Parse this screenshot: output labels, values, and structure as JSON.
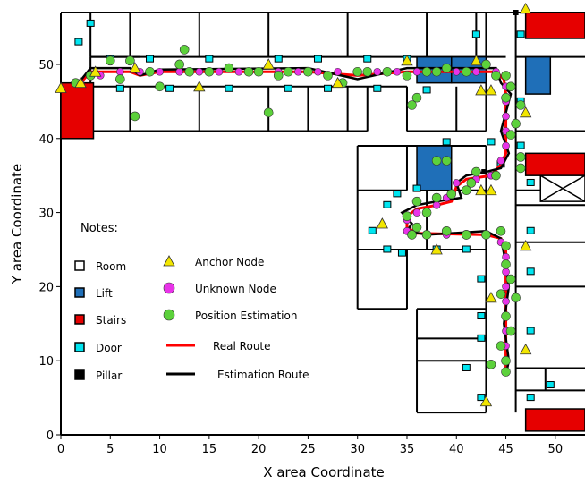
{
  "chart_data": {
    "type": "scatter",
    "title": "",
    "xlabel": "X area Coordinate",
    "ylabel": "Y area Coordinate",
    "xlim": [
      0,
      53
    ],
    "ylim": [
      0,
      57
    ],
    "xticks": [
      0,
      5,
      10,
      15,
      20,
      25,
      30,
      35,
      40,
      45,
      50
    ],
    "yticks": [
      0,
      10,
      20,
      30,
      40,
      50
    ],
    "notes_title": "Notes:",
    "notes": [
      {
        "label": "Room",
        "color": "#ffffff"
      },
      {
        "label": "Lift",
        "color": "#1f6fb8"
      },
      {
        "label": "Stairs",
        "color": "#e60000"
      },
      {
        "label": "Door",
        "color": "#00e5f0"
      },
      {
        "label": "Pillar",
        "color": "#000000"
      }
    ],
    "legend": [
      {
        "label": "Anchor Node",
        "marker": "triangle",
        "color": "#f2e600"
      },
      {
        "label": "Unknown Node",
        "marker": "circle",
        "color": "#e833e8"
      },
      {
        "label": "Position Estimation",
        "marker": "circle",
        "color": "#5cd13b"
      },
      {
        "label": "Real Route",
        "marker": "line",
        "color": "#ff0000"
      },
      {
        "label": "Estimation Route",
        "marker": "line",
        "color": "#000000"
      }
    ],
    "series": [
      {
        "name": "Anchor Node",
        "points": [
          [
            0,
            46.8
          ],
          [
            2,
            47.5
          ],
          [
            3.5,
            49
          ],
          [
            7.5,
            49.5
          ],
          [
            14,
            47
          ],
          [
            21,
            50
          ],
          [
            28,
            47.5
          ],
          [
            35,
            50.5
          ],
          [
            42,
            50.5
          ],
          [
            47,
            57.5
          ],
          [
            42.5,
            46.5
          ],
          [
            43.5,
            46.5
          ],
          [
            47,
            43.5
          ],
          [
            42.5,
            33
          ],
          [
            43.5,
            33
          ],
          [
            32.5,
            28.5
          ],
          [
            38,
            25
          ],
          [
            47,
            25.5
          ],
          [
            43.5,
            18.5
          ],
          [
            47,
            11.5
          ],
          [
            43,
            4.5
          ]
        ]
      },
      {
        "name": "Unknown Node",
        "points": [
          [
            2,
            47.5
          ],
          [
            4,
            48.5
          ],
          [
            6,
            49
          ],
          [
            8,
            49
          ],
          [
            10,
            49
          ],
          [
            12,
            49
          ],
          [
            14,
            49
          ],
          [
            16,
            49
          ],
          [
            18,
            49
          ],
          [
            20,
            49
          ],
          [
            22,
            49
          ],
          [
            24,
            49
          ],
          [
            26,
            49
          ],
          [
            28,
            49
          ],
          [
            30,
            49
          ],
          [
            32,
            49
          ],
          [
            34,
            49
          ],
          [
            36,
            49
          ],
          [
            38,
            49
          ],
          [
            40,
            49
          ],
          [
            42,
            49
          ],
          [
            44,
            49
          ],
          [
            45,
            47
          ],
          [
            45,
            45
          ],
          [
            45,
            43
          ],
          [
            45,
            41
          ],
          [
            45,
            39
          ],
          [
            44.5,
            37
          ],
          [
            43.5,
            35
          ],
          [
            42,
            34.5
          ],
          [
            40,
            34
          ],
          [
            39,
            32
          ],
          [
            38,
            31
          ],
          [
            36,
            30
          ],
          [
            35,
            29
          ],
          [
            35,
            27.5
          ],
          [
            37,
            27
          ],
          [
            39,
            27
          ],
          [
            41,
            27
          ],
          [
            43,
            27
          ],
          [
            44.5,
            26
          ],
          [
            45,
            24
          ],
          [
            45,
            22
          ],
          [
            45,
            20
          ],
          [
            45,
            18
          ],
          [
            45,
            16
          ],
          [
            45,
            14
          ],
          [
            45,
            12
          ],
          [
            45,
            10
          ]
        ]
      },
      {
        "name": "Position Estimation",
        "points": [
          [
            1.5,
            47.5
          ],
          [
            3,
            48.5
          ],
          [
            5,
            50.5
          ],
          [
            6,
            48
          ],
          [
            7.5,
            43
          ],
          [
            7,
            50.5
          ],
          [
            9,
            49
          ],
          [
            10,
            47
          ],
          [
            12,
            50
          ],
          [
            12.5,
            52
          ],
          [
            13,
            49
          ],
          [
            15,
            49
          ],
          [
            17,
            49.5
          ],
          [
            19,
            49
          ],
          [
            20,
            49
          ],
          [
            21,
            43.5
          ],
          [
            22,
            48.5
          ],
          [
            23,
            49
          ],
          [
            25,
            49
          ],
          [
            27,
            48.5
          ],
          [
            28.5,
            47.5
          ],
          [
            30,
            49
          ],
          [
            31,
            49
          ],
          [
            33,
            49
          ],
          [
            35,
            48.5
          ],
          [
            36,
            45.5
          ],
          [
            35.5,
            44.5
          ],
          [
            37,
            49
          ],
          [
            38,
            49
          ],
          [
            39,
            49.5
          ],
          [
            41,
            49
          ],
          [
            43,
            50
          ],
          [
            44,
            48.5
          ],
          [
            45,
            48.5
          ],
          [
            45.5,
            47
          ],
          [
            45,
            45.5
          ],
          [
            46,
            42
          ],
          [
            45.5,
            40.5
          ],
          [
            46.5,
            37.5
          ],
          [
            44,
            35
          ],
          [
            46.5,
            36
          ],
          [
            42,
            35.5
          ],
          [
            41,
            33
          ],
          [
            39,
            37
          ],
          [
            38,
            37
          ],
          [
            39.5,
            32.5
          ],
          [
            38,
            32
          ],
          [
            36,
            31.5
          ],
          [
            37,
            30
          ],
          [
            35,
            29.5
          ],
          [
            36,
            28
          ],
          [
            35.5,
            27
          ],
          [
            37,
            27
          ],
          [
            39,
            27.5
          ],
          [
            41,
            27
          ],
          [
            43,
            27
          ],
          [
            44.5,
            27.5
          ],
          [
            45,
            25.5
          ],
          [
            45,
            23
          ],
          [
            45.5,
            21
          ],
          [
            44.5,
            19
          ],
          [
            46,
            18.5
          ],
          [
            45,
            16
          ],
          [
            45.5,
            14
          ],
          [
            44.5,
            12
          ],
          [
            45,
            10
          ],
          [
            45,
            8.5
          ],
          [
            43.5,
            9.5
          ],
          [
            41,
            27
          ],
          [
            46.5,
            44.5
          ],
          [
            41.5,
            34
          ]
        ]
      },
      {
        "name": "Real Route",
        "points": [
          [
            2,
            47.5
          ],
          [
            3,
            49
          ],
          [
            7,
            49
          ],
          [
            8,
            48.5
          ],
          [
            10,
            49
          ],
          [
            25,
            49
          ],
          [
            30,
            48.5
          ],
          [
            35,
            49
          ],
          [
            44,
            49
          ],
          [
            44.8,
            48
          ],
          [
            45,
            46
          ],
          [
            45,
            38
          ],
          [
            44.5,
            36.5
          ],
          [
            43.5,
            35
          ],
          [
            41,
            34.5
          ],
          [
            40,
            33.5
          ],
          [
            39.5,
            31.5
          ],
          [
            38,
            31
          ],
          [
            36,
            30.5
          ],
          [
            35,
            29.5
          ],
          [
            35,
            28
          ],
          [
            36,
            27.2
          ],
          [
            43,
            27
          ],
          [
            44.5,
            26.5
          ],
          [
            45,
            25
          ],
          [
            45,
            9
          ]
        ]
      },
      {
        "name": "Estimation Route",
        "points": [
          [
            1.5,
            47
          ],
          [
            3,
            49.5
          ],
          [
            7,
            49.5
          ],
          [
            8,
            48.5
          ],
          [
            10,
            49.3
          ],
          [
            25,
            49.5
          ],
          [
            30,
            48
          ],
          [
            35,
            49.5
          ],
          [
            44,
            49.5
          ],
          [
            44.5,
            47.5
          ],
          [
            45.5,
            46
          ],
          [
            44.5,
            41
          ],
          [
            45.3,
            38
          ],
          [
            44.5,
            36
          ],
          [
            43,
            35.5
          ],
          [
            41,
            35
          ],
          [
            40,
            34
          ],
          [
            40.5,
            32
          ],
          [
            38,
            31.5
          ],
          [
            36,
            31
          ],
          [
            34.5,
            30
          ],
          [
            35.5,
            28.5
          ],
          [
            35,
            27.5
          ],
          [
            37,
            27
          ],
          [
            43,
            27.5
          ],
          [
            44.5,
            26.5
          ],
          [
            44.8,
            24.5
          ],
          [
            45.3,
            20
          ],
          [
            44.8,
            15
          ],
          [
            45.3,
            10
          ],
          [
            45,
            8
          ]
        ]
      }
    ]
  }
}
